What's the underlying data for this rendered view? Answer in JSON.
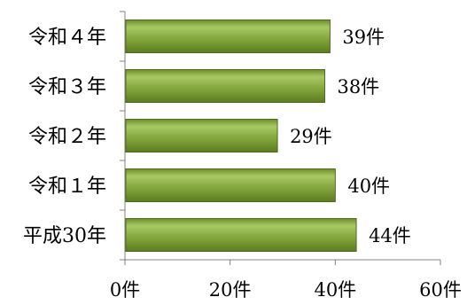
{
  "chart_data": {
    "type": "bar",
    "orientation": "horizontal",
    "categories": [
      "令和４年",
      "令和３年",
      "令和２年",
      "令和１年",
      "平成30年"
    ],
    "values": [
      39,
      38,
      29,
      40,
      44
    ],
    "value_labels": [
      "39件",
      "38件",
      "29件",
      "40件",
      "44件"
    ],
    "xlim": [
      0,
      60
    ],
    "x_ticks": [
      0,
      20,
      40,
      60
    ],
    "x_tick_labels": [
      "0件",
      "20件",
      "40件",
      "60件"
    ],
    "title": "",
    "xlabel": "",
    "ylabel": "",
    "grid": false,
    "legend": "none",
    "bar_color": "#7ea33a",
    "bar_edge_color": "#4f6b20"
  }
}
